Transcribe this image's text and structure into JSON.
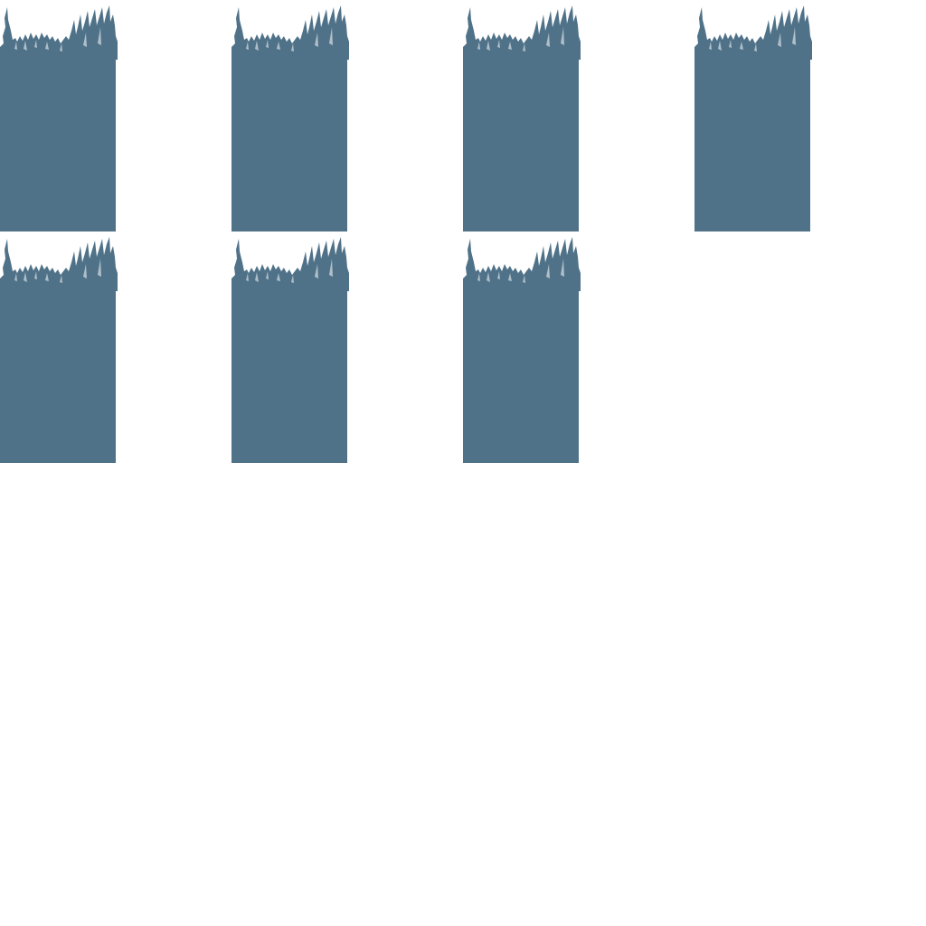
{
  "sprite_sheet": {
    "background_color": "#ffffff",
    "tile_color": "#507289",
    "tile_icon": "grass-topped-ground-tile",
    "columns": 4,
    "tile_count": 7,
    "tiles": [
      {
        "id": "tile-1"
      },
      {
        "id": "tile-2"
      },
      {
        "id": "tile-3"
      },
      {
        "id": "tile-4"
      },
      {
        "id": "tile-5"
      },
      {
        "id": "tile-6"
      },
      {
        "id": "tile-7"
      }
    ]
  }
}
